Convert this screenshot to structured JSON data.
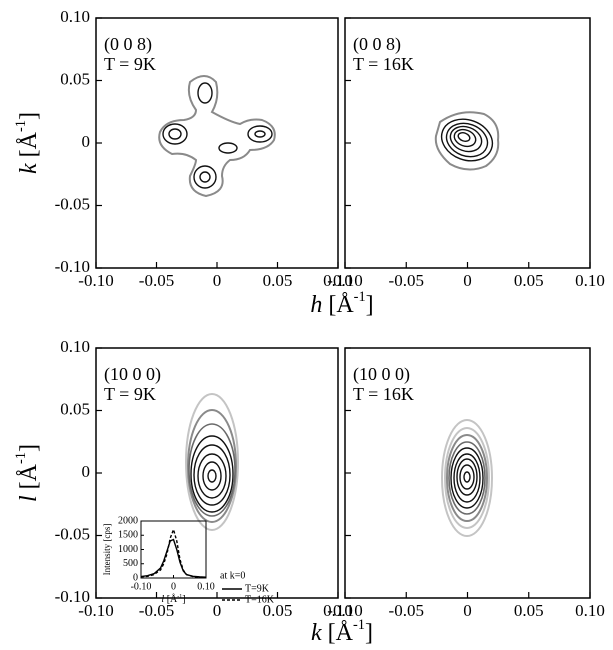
{
  "chart_data": [
    {
      "type": "contour",
      "label": [
        "(0 0 8)",
        "T = 9K"
      ],
      "xlim": [
        -0.1,
        0.1
      ],
      "xticks": [
        {
          "value": -0.1,
          "label": "-0.10"
        },
        -0.05,
        0,
        0.05,
        {
          "value": 0.1,
          "label": "0.10"
        }
      ],
      "ylim": [
        -0.1,
        0.1
      ],
      "yticks": [
        {
          "value": -0.1,
          "label": "-0.10"
        },
        -0.05,
        0,
        0.05,
        {
          "value": 0.1,
          "label": "0.10"
        }
      ]
    },
    {
      "type": "contour",
      "label": [
        "(0 0 8)",
        "T = 16K"
      ],
      "xlim": [
        -0.1,
        0.1
      ],
      "xticks": [
        {
          "value": -0.1,
          "label": "-0.10"
        },
        -0.05,
        0,
        0.05,
        {
          "value": 0.1,
          "label": "0.10"
        }
      ],
      "ylim": [
        -0.1,
        0.1
      ],
      "yticks": [
        -0.1,
        -0.05,
        0,
        0.05,
        0.1
      ],
      "ytick_labels": false
    },
    {
      "type": "contour",
      "label": [
        "(10 0 0)",
        "T = 9K"
      ],
      "xlim": [
        -0.1,
        0.1
      ],
      "xticks": [
        {
          "value": -0.1,
          "label": "-0.10"
        },
        -0.05,
        0,
        0.05,
        {
          "value": 0.1,
          "label": "0.10"
        }
      ],
      "ylim": [
        -0.1,
        0.1
      ],
      "yticks": [
        {
          "value": -0.1,
          "label": "-0.10"
        },
        -0.05,
        0,
        0.05,
        {
          "value": 0.1,
          "label": "0.10"
        }
      ]
    },
    {
      "type": "contour",
      "label": [
        "(10 0 0)",
        "T = 16K"
      ],
      "xlim": [
        -0.1,
        0.1
      ],
      "xticks": [
        {
          "value": -0.1,
          "label": "-0.10"
        },
        -0.05,
        0,
        0.05,
        {
          "value": 0.1,
          "label": "0.10"
        }
      ],
      "ylim": [
        -0.1,
        0.1
      ],
      "yticks": [
        -0.1,
        -0.05,
        0,
        0.05,
        0.1
      ],
      "ytick_labels": false
    },
    {
      "type": "line",
      "ylabel": "Intensity [cps]",
      "xlabel": [
        "l",
        " [Å",
        "-1",
        "]"
      ],
      "legend_title": "at k=0",
      "x": [
        -0.1,
        -0.08,
        -0.06,
        -0.04,
        -0.03,
        -0.02,
        -0.01,
        0,
        0.01,
        0.02,
        0.03,
        0.04,
        0.06,
        0.08,
        0.1
      ],
      "series": [
        {
          "name": "T=9K",
          "color": "#000000",
          "dash": false,
          "values": [
            50,
            80,
            150,
            350,
            600,
            950,
            1300,
            1350,
            1000,
            550,
            250,
            120,
            60,
            40,
            30
          ]
        },
        {
          "name": "T=16K",
          "color": "#000000",
          "dash": true,
          "values": [
            40,
            60,
            120,
            280,
            500,
            850,
            1400,
            1700,
            1300,
            650,
            280,
            120,
            50,
            30,
            20
          ]
        }
      ],
      "xlim": [
        -0.1,
        0.1
      ],
      "xticks": [
        {
          "value": -0.1,
          "label": "-0.10"
        },
        0,
        {
          "value": 0.1,
          "label": "0.10"
        }
      ],
      "ylim": [
        0,
        2000
      ],
      "yticks": [
        0,
        500,
        1000,
        1500,
        2000
      ]
    }
  ],
  "axis_titles": {
    "top_x": [
      "h",
      " [Å",
      "-1",
      "]"
    ],
    "top_y": [
      "k",
      " [Å",
      "-1",
      "]"
    ],
    "bottom_x": [
      "k",
      " [Å",
      "-1",
      "]"
    ],
    "bottom_y": [
      "l",
      " [Å",
      "-1",
      "]"
    ]
  }
}
